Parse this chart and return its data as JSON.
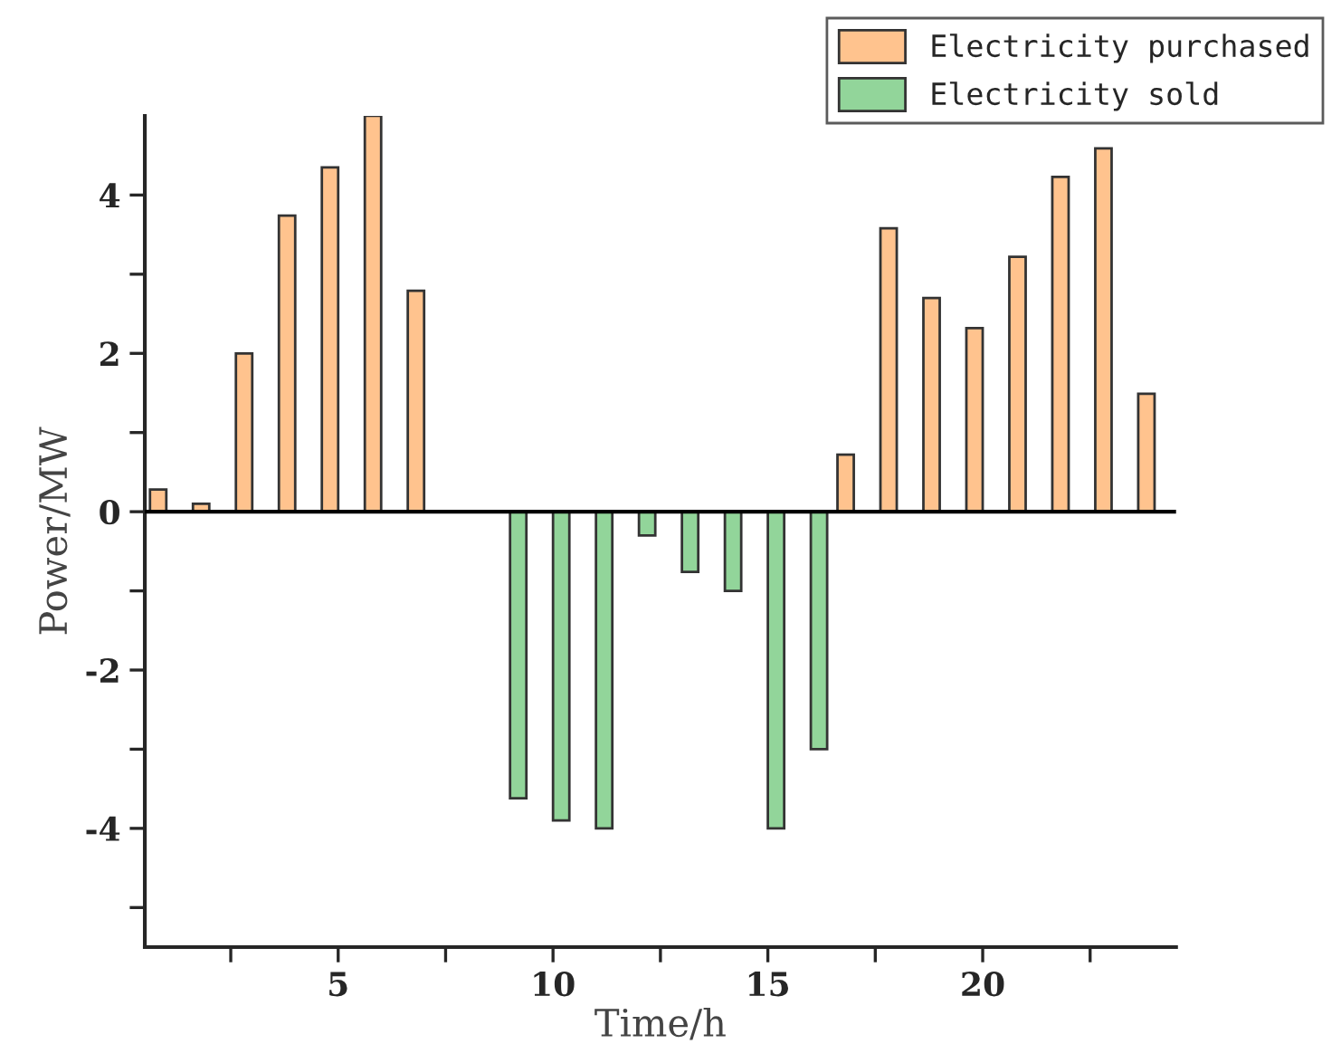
{
  "chart_data": {
    "type": "bar",
    "xlabel": "Time/h",
    "ylabel": "Power/MW",
    "x": [
      1,
      2,
      3,
      4,
      5,
      6,
      7,
      8,
      9,
      10,
      11,
      12,
      13,
      14,
      15,
      16,
      17,
      18,
      19,
      20,
      21,
      22,
      23,
      24
    ],
    "series": [
      {
        "name": "Electricity purchased",
        "color": "#ffc38e",
        "values": [
          0.28,
          0.1,
          2.0,
          3.74,
          4.35,
          5.0,
          2.79,
          null,
          null,
          null,
          null,
          null,
          null,
          null,
          null,
          null,
          0.72,
          3.58,
          2.7,
          2.32,
          3.22,
          4.23,
          4.59,
          1.49
        ]
      },
      {
        "name": "Electricity sold",
        "color": "#92d59a",
        "values": [
          null,
          null,
          null,
          null,
          null,
          null,
          null,
          null,
          -3.62,
          -3.9,
          -4.0,
          -0.3,
          -0.76,
          -1.0,
          -4.0,
          -3.0,
          null,
          null,
          null,
          null,
          null,
          null,
          null,
          null
        ]
      }
    ],
    "xlim": [
      0.5,
      24.5
    ],
    "xticks": [
      {
        "value": 2.5,
        "label": null
      },
      5,
      {
        "value": 7.5,
        "label": null
      },
      10,
      {
        "value": 12.5,
        "label": null
      },
      15,
      {
        "value": 17.5,
        "label": null
      },
      20,
      {
        "value": 22.5,
        "label": null
      }
    ],
    "ylim": [
      -5.5,
      5
    ],
    "yticks": [
      {
        "value": -5,
        "label": null
      },
      -4,
      {
        "value": -3,
        "label": null
      },
      -2,
      {
        "value": -1,
        "label": null
      },
      0,
      {
        "value": 1,
        "label": null
      },
      2,
      {
        "value": 3,
        "label": null
      },
      4
    ],
    "ref_lines": [
      {
        "axis": "y",
        "value": 0
      }
    ],
    "grid": false,
    "legend": "top right"
  }
}
